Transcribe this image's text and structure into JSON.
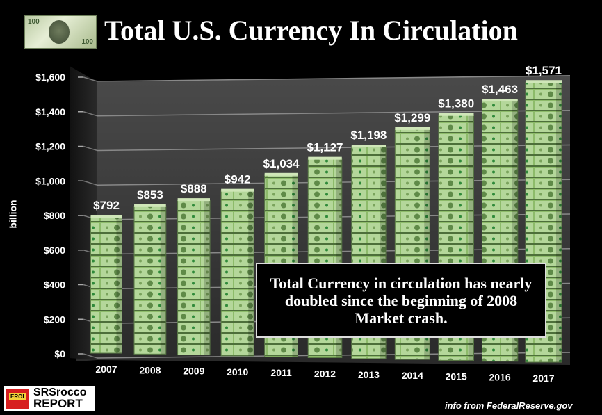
{
  "title": "Total U.S. Currency In Circulation",
  "note": "Total Currency in circulation has nearly doubled since the beginning of 2008 Market crash.",
  "source": "info from FederalReserve.gov",
  "logo": {
    "badge": "EROI",
    "line1": "SRSrocco",
    "line2": "REPORT"
  },
  "bill_text": "100",
  "colors": {
    "background": "#000000",
    "wall": "#3a3a3a",
    "bar": "#8fbf6a",
    "text": "#ffffff"
  },
  "chart_data": {
    "type": "bar",
    "title": "Total U.S. Currency In Circulation",
    "xlabel": "",
    "ylabel": "billion",
    "ylim": [
      0,
      1600
    ],
    "yticks": [
      "$0",
      "$200",
      "$400",
      "$600",
      "$800",
      "$1,000",
      "$1,200",
      "$1,400",
      "$1,600"
    ],
    "categories": [
      "2007",
      "2008",
      "2009",
      "2010",
      "2011",
      "2012",
      "2013",
      "2014",
      "2015",
      "2016",
      "2017"
    ],
    "values": [
      792,
      853,
      888,
      942,
      1034,
      1127,
      1198,
      1299,
      1380,
      1463,
      1571
    ],
    "data_labels": [
      "$792",
      "$853",
      "$888",
      "$942",
      "$1,034",
      "$1,127",
      "$1,198",
      "$1,299",
      "$1,380",
      "$1,463",
      "$1,571"
    ],
    "grid": true,
    "legend": "none"
  }
}
